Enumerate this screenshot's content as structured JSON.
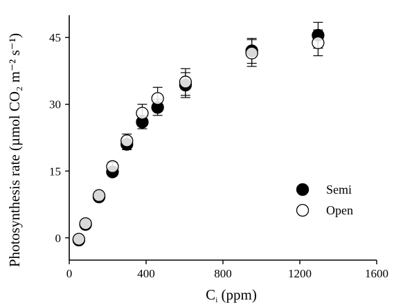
{
  "chart_data": {
    "type": "scatter",
    "title": "",
    "xlabel_main": "C",
    "xlabel_sub": "i",
    "xlabel_unit": " (ppm)",
    "ylabel": "Photosynthesis rate (µmol CO₂ m⁻² s⁻¹)",
    "xlim": [
      0,
      1600
    ],
    "ylim": [
      -5,
      50
    ],
    "xticks": [
      0,
      400,
      800,
      1200,
      1600
    ],
    "yticks": [
      0,
      15,
      30,
      45
    ],
    "grid": false,
    "legend_position": "right-center",
    "series": [
      {
        "name": "Semi",
        "marker": "filled-circle",
        "color": "#000000",
        "points": [
          {
            "x": 50,
            "y": -0.5,
            "err": 0.5
          },
          {
            "x": 85,
            "y": 3.0,
            "err": 0.6
          },
          {
            "x": 155,
            "y": 9.2,
            "err": 0.8
          },
          {
            "x": 225,
            "y": 14.8,
            "err": 0.8
          },
          {
            "x": 300,
            "y": 21.0,
            "err": 1.2
          },
          {
            "x": 380,
            "y": 26.0,
            "err": 1.5
          },
          {
            "x": 460,
            "y": 29.3,
            "err": 1.8
          },
          {
            "x": 605,
            "y": 34.3,
            "err": 2.8
          },
          {
            "x": 950,
            "y": 42.0,
            "err": 2.8
          },
          {
            "x": 1295,
            "y": 45.5,
            "err": 2.9
          }
        ]
      },
      {
        "name": "Open",
        "marker": "open-circle",
        "color": "#000000",
        "points": [
          {
            "x": 50,
            "y": -0.3,
            "err": 0.5
          },
          {
            "x": 85,
            "y": 3.2,
            "err": 0.6
          },
          {
            "x": 155,
            "y": 9.5,
            "err": 0.8
          },
          {
            "x": 225,
            "y": 16.0,
            "err": 1.0
          },
          {
            "x": 300,
            "y": 21.8,
            "err": 1.5
          },
          {
            "x": 380,
            "y": 28.0,
            "err": 2.0
          },
          {
            "x": 460,
            "y": 31.3,
            "err": 2.5
          },
          {
            "x": 605,
            "y": 35.0,
            "err": 3.0
          },
          {
            "x": 950,
            "y": 41.5,
            "err": 3.0
          },
          {
            "x": 1295,
            "y": 43.8,
            "err": 2.9
          }
        ]
      }
    ]
  }
}
